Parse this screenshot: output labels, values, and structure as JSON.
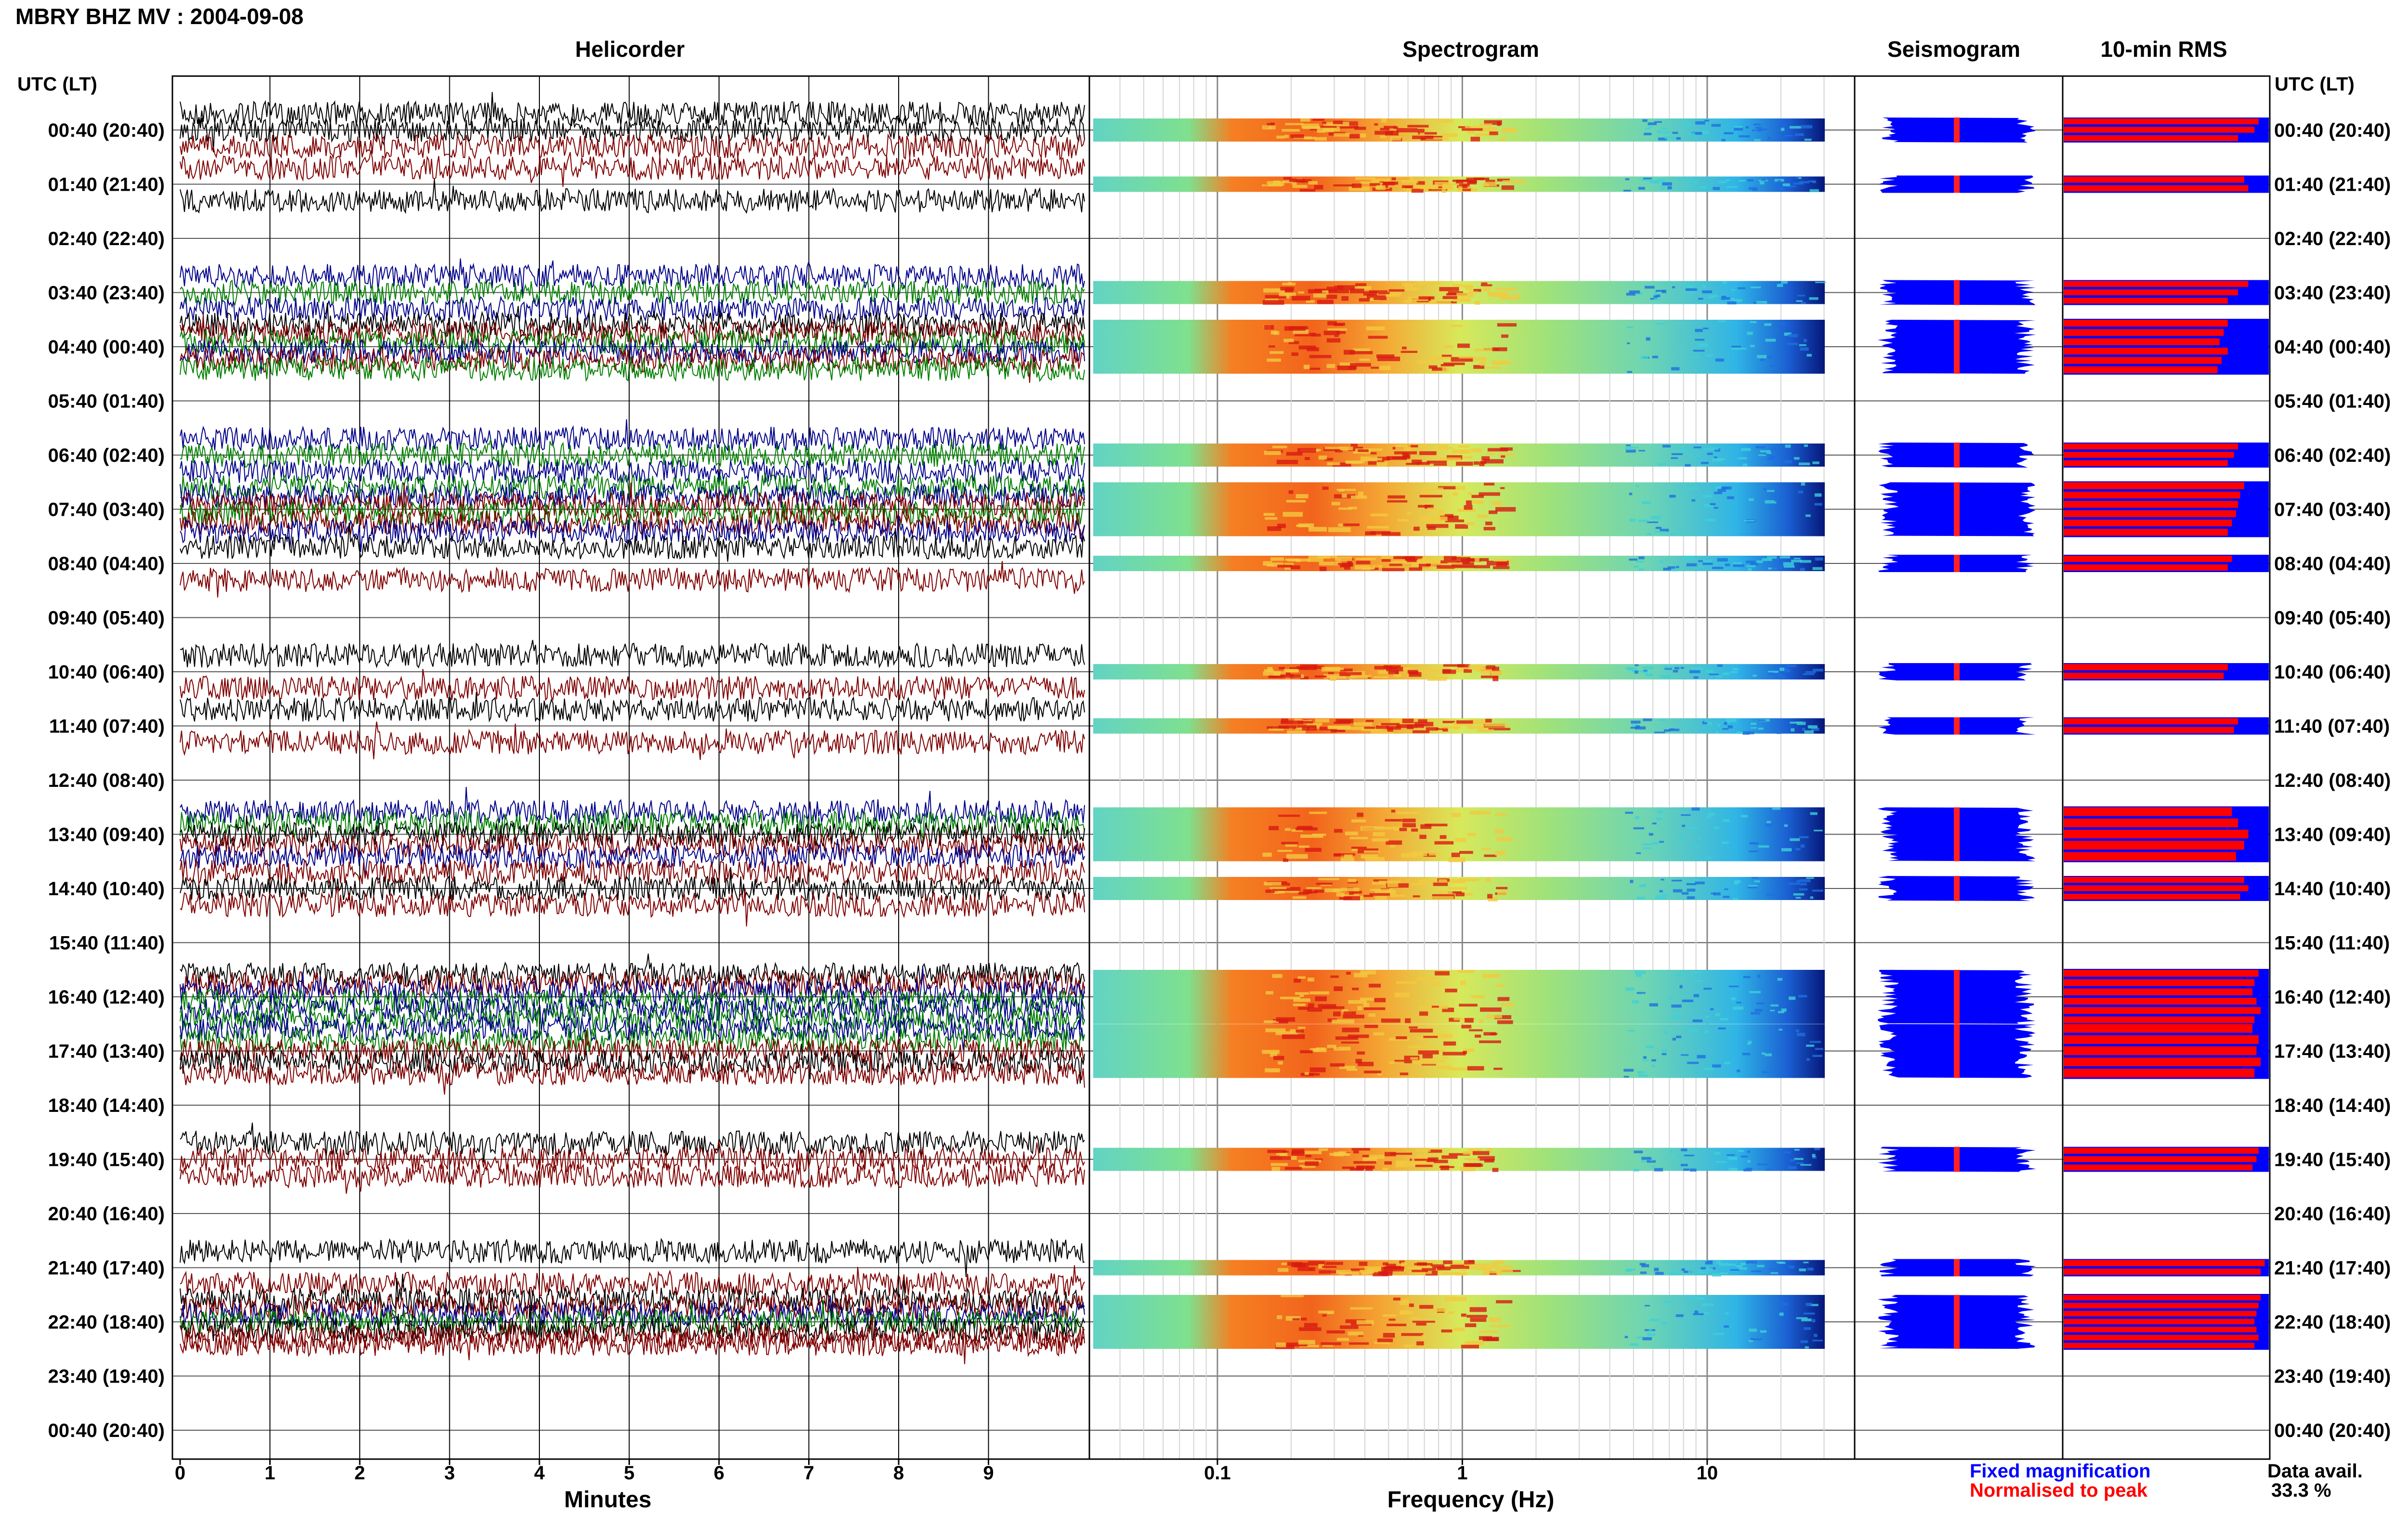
{
  "page_title": "MBRY BHZ MV : 2004-09-08",
  "chart_data": {
    "type": "heatmap",
    "station": "MBRY",
    "channel": "BHZ",
    "network": "MV",
    "date": "2004-09-08",
    "panels": {
      "helicorder": "Helicorder",
      "spectrogram": "Spectrogram",
      "seismogram": "Seismogram",
      "rms": "10-min RMS"
    },
    "row_axis_label": "UTC (LT)",
    "row_labels": [
      "00:40 (20:40)",
      "01:40 (21:40)",
      "02:40 (22:40)",
      "03:40 (23:40)",
      "04:40 (00:40)",
      "05:40 (01:40)",
      "06:40 (02:40)",
      "07:40 (03:40)",
      "08:40 (04:40)",
      "09:40 (05:40)",
      "10:40 (06:40)",
      "11:40 (07:40)",
      "12:40 (08:40)",
      "13:40 (09:40)",
      "14:40 (10:40)",
      "15:40 (11:40)",
      "16:40 (12:40)",
      "17:40 (13:40)",
      "18:40 (14:40)",
      "19:40 (15:40)",
      "20:40 (16:40)",
      "21:40 (17:40)",
      "22:40 (18:40)",
      "23:40 (19:40)",
      "00:40 (20:40)"
    ],
    "helicorder_xlabel": "Minutes",
    "helicorder_ticks": [
      "0",
      "1",
      "2",
      "3",
      "4",
      "5",
      "6",
      "7",
      "8",
      "9"
    ],
    "helicorder_xlim": [
      0,
      10
    ],
    "spectrogram_xlabel": "Frequency (Hz)",
    "spectrogram_ticks": [
      "0.1",
      "1",
      "10"
    ],
    "spectrogram_tick_values": [
      0.1,
      1,
      10
    ],
    "spectrogram_xlim": [
      0.03,
      40
    ],
    "spectrogram_scale": "log",
    "data_rows": [
      {
        "hour": 0,
        "traces": [
          "#000000",
          "#000000",
          "#800000"
        ],
        "rms": [
          0.95,
          0.93,
          0.85
        ]
      },
      {
        "hour": 1,
        "traces": [
          "#800000",
          "#000000"
        ],
        "rms": [
          0.88,
          0.9
        ]
      },
      {
        "hour": 3,
        "traces": [
          "#00008b",
          "#008000",
          "#00008b"
        ],
        "rms": [
          0.9,
          0.85,
          0.8
        ]
      },
      {
        "hour": 4,
        "traces": [
          "#000000",
          "#800000",
          "#008000",
          "#00008b",
          "#800000",
          "#008000"
        ],
        "rms": [
          0.8,
          0.78,
          0.76,
          0.8,
          0.77,
          0.75
        ]
      },
      {
        "hour": 6,
        "traces": [
          "#00008b",
          "#008000",
          "#00008b"
        ],
        "rms": [
          0.85,
          0.83,
          0.8
        ]
      },
      {
        "hour": 7,
        "traces": [
          "#008000",
          "#00008b",
          "#800000",
          "#008000",
          "#800000",
          "#00008b"
        ],
        "rms": [
          0.88,
          0.86,
          0.85,
          0.84,
          0.82,
          0.8
        ]
      },
      {
        "hour": 8,
        "traces": [
          "#000000",
          "#800000"
        ],
        "rms": [
          0.82,
          0.8
        ]
      },
      {
        "hour": 10,
        "traces": [
          "#000000",
          "#800000"
        ],
        "rms": [
          0.8,
          0.78
        ]
      },
      {
        "hour": 11,
        "traces": [
          "#000000",
          "#800000"
        ],
        "rms": [
          0.85,
          0.83
        ]
      },
      {
        "hour": 13,
        "traces": [
          "#00008b",
          "#008000",
          "#000000",
          "#800000",
          "#00008b"
        ],
        "rms": [
          0.82,
          0.85,
          0.9,
          0.88,
          0.84
        ]
      },
      {
        "hour": 14,
        "traces": [
          "#800000",
          "#000000",
          "#800000"
        ],
        "rms": [
          0.88,
          0.9,
          0.86
        ]
      },
      {
        "hour": 16,
        "traces": [
          "#000000",
          "#800000",
          "#00008b",
          "#008000",
          "#00008b",
          "#008000"
        ],
        "rms": [
          0.95,
          0.93,
          0.92,
          0.94,
          0.96,
          0.93
        ]
      },
      {
        "hour": 17,
        "traces": [
          "#00008b",
          "#008000",
          "#800000",
          "#000000",
          "#800000"
        ],
        "rms": [
          0.92,
          0.95,
          0.94,
          0.96,
          0.93
        ]
      },
      {
        "hour": 19,
        "traces": [
          "#000000",
          "#800000",
          "#800000"
        ],
        "rms": [
          0.95,
          0.94,
          0.92
        ]
      },
      {
        "hour": 21,
        "traces": [
          "#000000",
          "#800000"
        ],
        "rms": [
          0.98,
          0.96
        ]
      },
      {
        "hour": 22,
        "traces": [
          "#000000",
          "#800000",
          "#00008b",
          "#008000",
          "#000000",
          "#800000",
          "#800000"
        ],
        "rms": [
          0.96,
          0.95,
          0.94,
          0.93,
          0.94,
          0.95,
          0.93
        ]
      }
    ],
    "legend": {
      "fixed": "Fixed magnification",
      "normalised": "Normalised to peak",
      "fixed_color": "#0000ff",
      "normalised_color": "#ff0000",
      "placement": "bottom-right"
    },
    "data_avail_label": "Data avail.",
    "data_avail_value": "33.3 %",
    "colors": {
      "rms_fixed": "#0000ff",
      "rms_normalised": "#ff0000",
      "seismo_fill": "#0000ff",
      "seismo_center": "#ff2020"
    }
  }
}
